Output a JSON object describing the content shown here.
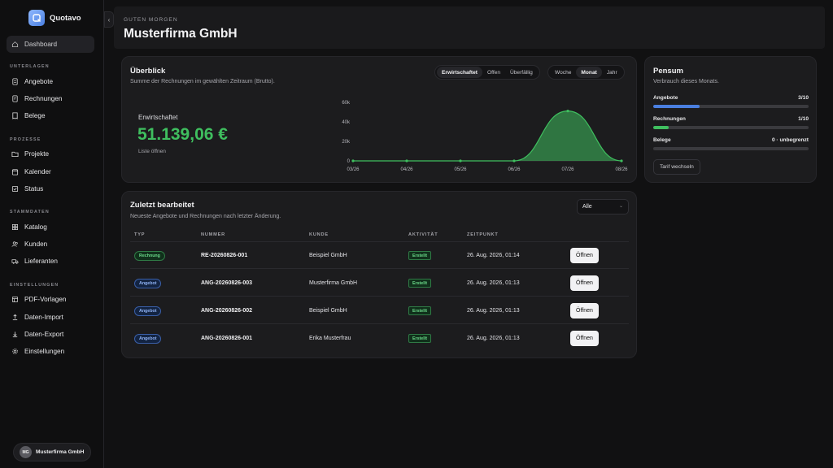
{
  "app": {
    "name": "Quotavo"
  },
  "sidebar": {
    "dashboard": "Dashboard",
    "sections": [
      {
        "label": "UNTERLAGEN",
        "items": [
          "Angebote",
          "Rechnungen",
          "Belege"
        ]
      },
      {
        "label": "PROZESSE",
        "items": [
          "Projekte",
          "Kalender",
          "Status"
        ]
      },
      {
        "label": "STAMMDATEN",
        "items": [
          "Katalog",
          "Kunden",
          "Lieferanten"
        ]
      },
      {
        "label": "EINSTELLUNGEN",
        "items": [
          "PDF-Vorlagen",
          "Daten-Import",
          "Daten-Export",
          "Einstellungen"
        ]
      }
    ],
    "user": {
      "initials": "MG",
      "name": "Musterfirma GmbH"
    }
  },
  "header": {
    "greeting": "GUTEN MORGEN",
    "company": "Musterfirma GmbH"
  },
  "overview": {
    "title": "Überblick",
    "subtitle": "Summe der Rechnungen im gewählten Zeitraum (Brutto).",
    "filters": [
      "Erwirtschaftet",
      "Offen",
      "Überfällig"
    ],
    "active_filter": "Erwirtschaftet",
    "periods": [
      "Woche",
      "Monat",
      "Jahr"
    ],
    "active_period": "Monat",
    "metric_label": "Erwirtschaftet",
    "metric_value": "51.139,06 €",
    "list_link": "Liste öffnen",
    "accent": "#3fbf5f"
  },
  "chart_data": {
    "type": "area",
    "x": [
      "03/26",
      "04/26",
      "05/26",
      "06/26",
      "07/26",
      "08/26"
    ],
    "values": [
      0,
      0,
      0,
      0,
      51139.06,
      0
    ],
    "yticks": [
      "0",
      "20k",
      "40k",
      "60k"
    ],
    "ylim": [
      0,
      60000
    ],
    "grid": false
  },
  "pensum": {
    "title": "Pensum",
    "subtitle": "Verbrauch dieses Monats.",
    "rows": [
      {
        "label": "Angebote",
        "value": "3/10",
        "fraction": 0.3,
        "color": "#4a7fe0"
      },
      {
        "label": "Rechnungen",
        "value": "1/10",
        "fraction": 0.1,
        "color": "#3fbf5f"
      },
      {
        "label": "Belege",
        "value": "0 · unbegrenzt",
        "fraction": 0,
        "color": "#3fbf5f"
      }
    ],
    "button": "Tarif wechseln"
  },
  "recent": {
    "title": "Zuletzt bearbeitet",
    "subtitle": "Neueste Angebote und Rechnungen nach letzter Änderung.",
    "filter_value": "Alle",
    "columns": [
      "TYP",
      "NUMMER",
      "KUNDE",
      "AKTIVITÄT",
      "ZEITPUNKT"
    ],
    "rows": [
      {
        "type": "Rechnung",
        "type_color": "green",
        "number": "RE-20260826-001",
        "customer": "Beispiel GmbH",
        "activity": "Erstellt",
        "time": "26. Aug. 2026, 01:14",
        "action": "Öffnen"
      },
      {
        "type": "Angebot",
        "type_color": "blue",
        "number": "ANG-20260826-003",
        "customer": "Musterfirma GmbH",
        "activity": "Erstellt",
        "time": "26. Aug. 2026, 01:13",
        "action": "Öffnen"
      },
      {
        "type": "Angebot",
        "type_color": "blue",
        "number": "ANG-20260826-002",
        "customer": "Beispiel GmbH",
        "activity": "Erstellt",
        "time": "26. Aug. 2026, 01:13",
        "action": "Öffnen"
      },
      {
        "type": "Angebot",
        "type_color": "blue",
        "number": "ANG-20260826-001",
        "customer": "Erika Musterfrau",
        "activity": "Erstellt",
        "time": "26. Aug. 2026, 01:13",
        "action": "Öffnen"
      }
    ]
  }
}
